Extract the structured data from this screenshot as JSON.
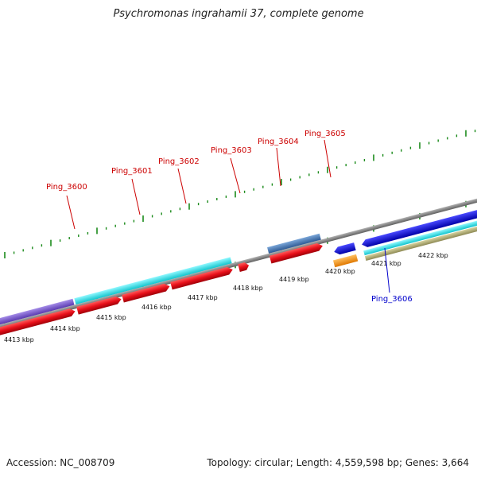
{
  "title": "Psychromonas ingrahamii 37, complete genome",
  "footer": {
    "accession": "Accession: NC_008709",
    "summary": "Topology: circular; Length: 4,559,598 bp; Genes: 3,664"
  },
  "axis_ticks": [
    "4413 kbp",
    "4414 kbp",
    "4415 kbp",
    "4416 kbp",
    "4417 kbp",
    "4418 kbp",
    "4419 kbp",
    "4420 kbp",
    "4421 kbp",
    "4422 kbp"
  ],
  "gene_labels": [
    "Ping_3600",
    "Ping_3601",
    "Ping_3602",
    "Ping_3603",
    "Ping_3604",
    "Ping_3605",
    "Ping_3606"
  ],
  "colors": {
    "cds": "#e8101a",
    "label_red": "#cc0000",
    "label_blue": "#0000cc",
    "backbone": "#808080",
    "tick": "#1a8a1a",
    "purple": "#7a5cd0",
    "cyan": "#22e6ee",
    "steel": "#4a7ab5",
    "blue": "#1010dd",
    "orange": "#ff9900",
    "khaki": "#b5b27a"
  }
}
